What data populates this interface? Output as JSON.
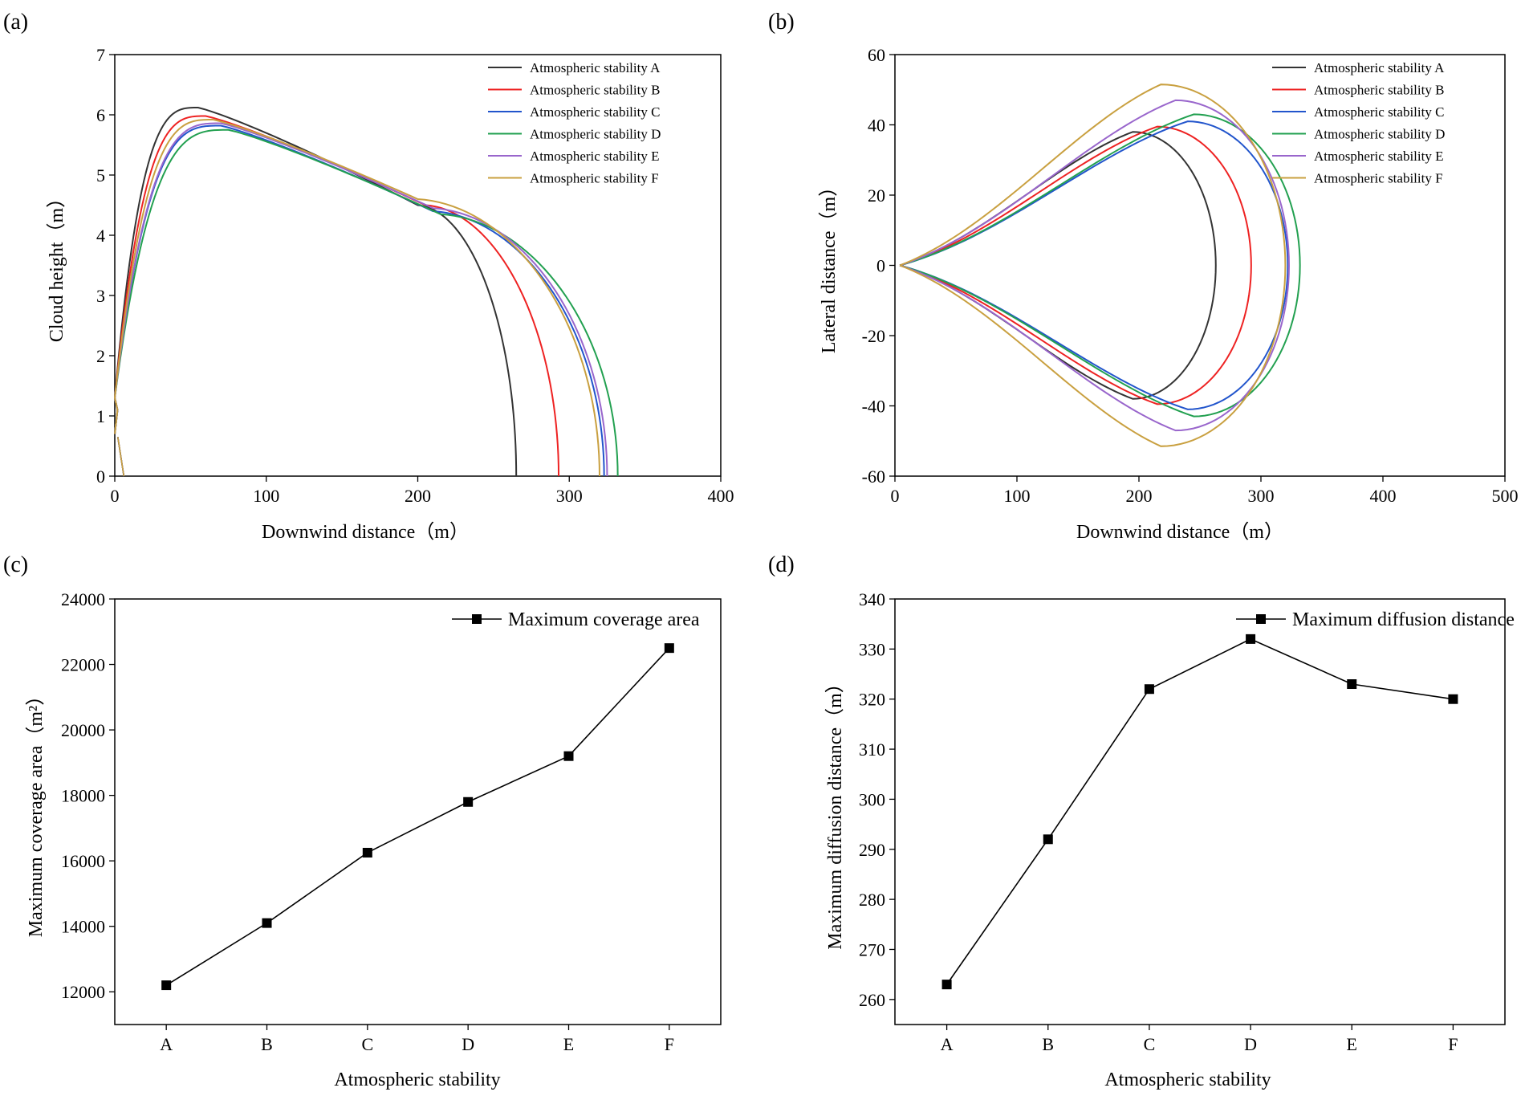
{
  "colors": {
    "A": "#333333",
    "B": "#ee2222",
    "C": "#2255cc",
    "D": "#22a050",
    "E": "#9966cc",
    "F": "#c9a040",
    "line": "#000000"
  },
  "chart_data": [
    {
      "id": "a",
      "panel_label": "(a)",
      "type": "line",
      "xlabel": "Downwind distance（m）",
      "ylabel": "Cloud height（m）",
      "xlim": [
        0,
        400
      ],
      "ylim": [
        0,
        7
      ],
      "xticks": [
        "0",
        "100",
        "200",
        "300",
        "400"
      ],
      "yticks": [
        "0",
        "1",
        "2",
        "3",
        "4",
        "5",
        "6",
        "7"
      ],
      "legend_position": "top-right",
      "series": [
        {
          "name": "Atmospheric stability A",
          "color_key": "A",
          "tip_x": 265,
          "peak": [
            55,
            6.12
          ],
          "break": [
            200,
            4.5
          ],
          "lead_x": 6
        },
        {
          "name": "Atmospheric stability B",
          "color_key": "B",
          "tip_x": 293,
          "peak": [
            60,
            5.98
          ],
          "break": [
            205,
            4.5
          ],
          "lead_x": 6
        },
        {
          "name": "Atmospheric stability C",
          "color_key": "C",
          "tip_x": 323,
          "peak": [
            70,
            5.82
          ],
          "break": [
            210,
            4.4
          ],
          "lead_x": 6
        },
        {
          "name": "Atmospheric stability D",
          "color_key": "D",
          "tip_x": 332,
          "peak": [
            75,
            5.75
          ],
          "break": [
            215,
            4.35
          ],
          "lead_x": 6
        },
        {
          "name": "Atmospheric stability E",
          "color_key": "E",
          "tip_x": 325,
          "peak": [
            70,
            5.86
          ],
          "break": [
            210,
            4.45
          ],
          "lead_x": 6
        },
        {
          "name": "Atmospheric stability F",
          "color_key": "F",
          "tip_x": 320,
          "peak": [
            65,
            5.92
          ],
          "break": [
            200,
            4.6
          ],
          "lead_x": 6
        }
      ]
    },
    {
      "id": "b",
      "panel_label": "(b)",
      "type": "line",
      "xlabel": "Downwind distance（m）",
      "ylabel": "Lateral distance（m）",
      "xlim": [
        0,
        500
      ],
      "ylim": [
        -60,
        60
      ],
      "xticks": [
        "0",
        "100",
        "200",
        "300",
        "400",
        "500"
      ],
      "yticks": [
        "-60",
        "-40",
        "-20",
        "0",
        "20",
        "40",
        "60"
      ],
      "legend_position": "top-right",
      "series": [
        {
          "name": "Atmospheric stability A",
          "color_key": "A",
          "max_x": 263,
          "x_at_ymax": 195,
          "ymax": 38
        },
        {
          "name": "Atmospheric stability B",
          "color_key": "B",
          "max_x": 292,
          "x_at_ymax": 215,
          "ymax": 39.5
        },
        {
          "name": "Atmospheric stability C",
          "color_key": "C",
          "max_x": 322,
          "x_at_ymax": 240,
          "ymax": 41
        },
        {
          "name": "Atmospheric stability D",
          "color_key": "D",
          "max_x": 332,
          "x_at_ymax": 245,
          "ymax": 43
        },
        {
          "name": "Atmospheric stability E",
          "color_key": "E",
          "max_x": 323,
          "x_at_ymax": 230,
          "ymax": 47
        },
        {
          "name": "Atmospheric stability F",
          "color_key": "F",
          "max_x": 320,
          "x_at_ymax": 218,
          "ymax": 51.5
        }
      ]
    },
    {
      "id": "c",
      "panel_label": "(c)",
      "type": "line",
      "xlabel": "Atmospheric stability",
      "ylabel": "Maximum coverage area（m²）",
      "categories": [
        "A",
        "B",
        "C",
        "D",
        "E",
        "F"
      ],
      "ylim": [
        11000,
        24000
      ],
      "yticks": [
        "12000",
        "14000",
        "16000",
        "18000",
        "20000",
        "22000",
        "24000"
      ],
      "legend_position": "top-right",
      "series": [
        {
          "name": "Maximum coverage area",
          "color_key": "line",
          "values": [
            12200,
            14100,
            16250,
            17800,
            19200,
            22500
          ]
        }
      ]
    },
    {
      "id": "d",
      "panel_label": "(d)",
      "type": "line",
      "xlabel": "Atmospheric stability",
      "ylabel": "Maximum diffusion distance（m）",
      "categories": [
        "A",
        "B",
        "C",
        "D",
        "E",
        "F"
      ],
      "ylim": [
        255,
        340
      ],
      "yticks": [
        "260",
        "270",
        "280",
        "290",
        "300",
        "310",
        "320",
        "330",
        "340"
      ],
      "legend_position": "top-right",
      "series": [
        {
          "name": "Maximum diffusion distance",
          "color_key": "line",
          "values": [
            263,
            292,
            322,
            332,
            323,
            320
          ]
        }
      ]
    }
  ]
}
